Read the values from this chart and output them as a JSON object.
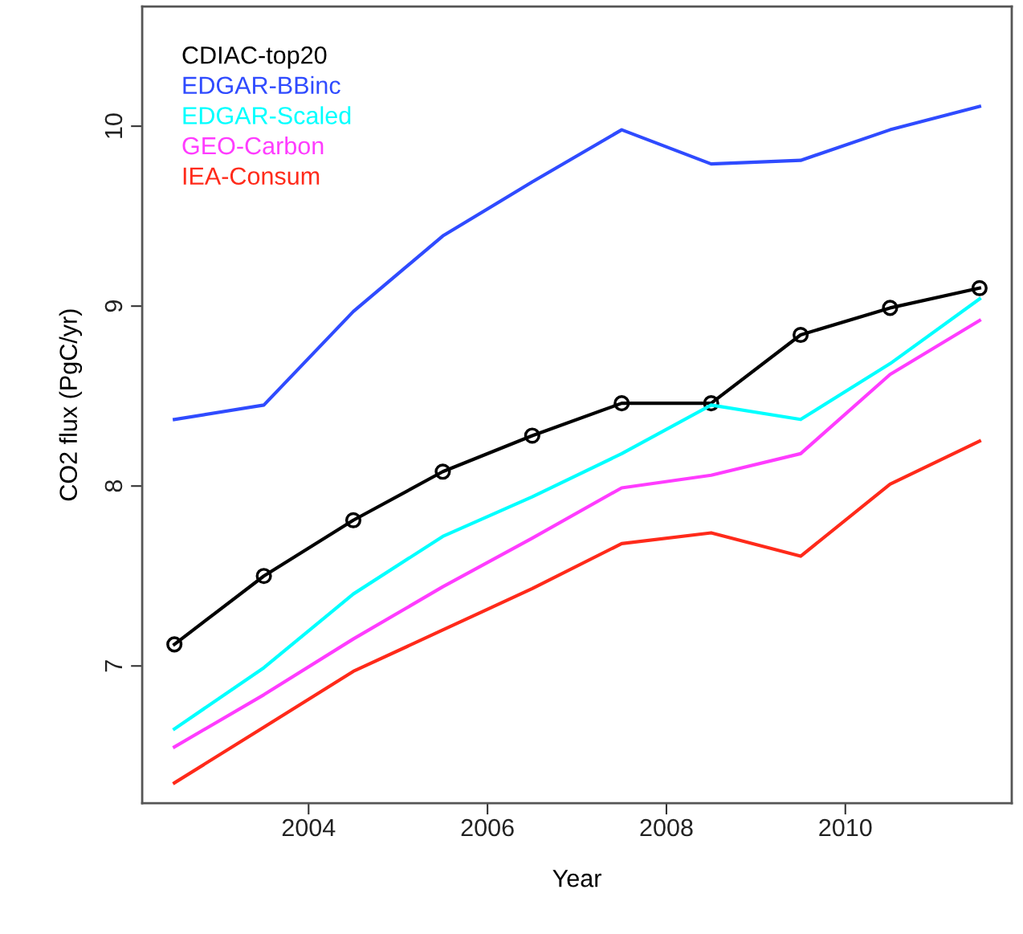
{
  "chart_data": {
    "type": "line",
    "xlabel": "Year",
    "ylabel": "CO2 flux (PgC/yr)",
    "x": [
      2002.5,
      2003.5,
      2004.5,
      2005.5,
      2006.5,
      2007.5,
      2008.5,
      2009.5,
      2010.5,
      2011.5
    ],
    "xlim": [
      2002.14,
      2011.86
    ],
    "xticks": [
      2004,
      2006,
      2008,
      2010
    ],
    "ylim": [
      6.237,
      10.665
    ],
    "yticks": [
      7,
      8,
      9,
      10
    ],
    "grid": false,
    "legend": "top left",
    "line_style": "solid",
    "series": [
      {
        "name": "CDIAC-top20",
        "color": "#000000",
        "marker": "circle",
        "values": [
          7.12,
          7.5,
          7.81,
          8.08,
          8.28,
          8.46,
          8.46,
          8.84,
          8.99,
          9.1
        ]
      },
      {
        "name": "EDGAR-BBinc",
        "color": "#2f4bff",
        "marker": "none",
        "values": [
          8.37,
          8.45,
          8.97,
          9.39,
          9.69,
          9.98,
          9.79,
          9.81,
          9.98,
          10.11
        ]
      },
      {
        "name": "EDGAR-Scaled",
        "color": "#00ffff",
        "marker": "none",
        "values": [
          6.65,
          6.99,
          7.4,
          7.72,
          7.94,
          8.18,
          8.45,
          8.37,
          8.68,
          9.04
        ]
      },
      {
        "name": "GEO-Carbon",
        "color": "#ff3cff",
        "marker": "none",
        "values": [
          6.55,
          6.84,
          7.15,
          7.44,
          7.71,
          7.99,
          8.06,
          8.18,
          8.62,
          8.92
        ]
      },
      {
        "name": "IEA-Consum",
        "color": "#ff2a1a",
        "marker": "none",
        "values": [
          6.35,
          6.66,
          6.97,
          7.2,
          7.43,
          7.68,
          7.74,
          7.61,
          8.01,
          8.25
        ]
      }
    ]
  }
}
